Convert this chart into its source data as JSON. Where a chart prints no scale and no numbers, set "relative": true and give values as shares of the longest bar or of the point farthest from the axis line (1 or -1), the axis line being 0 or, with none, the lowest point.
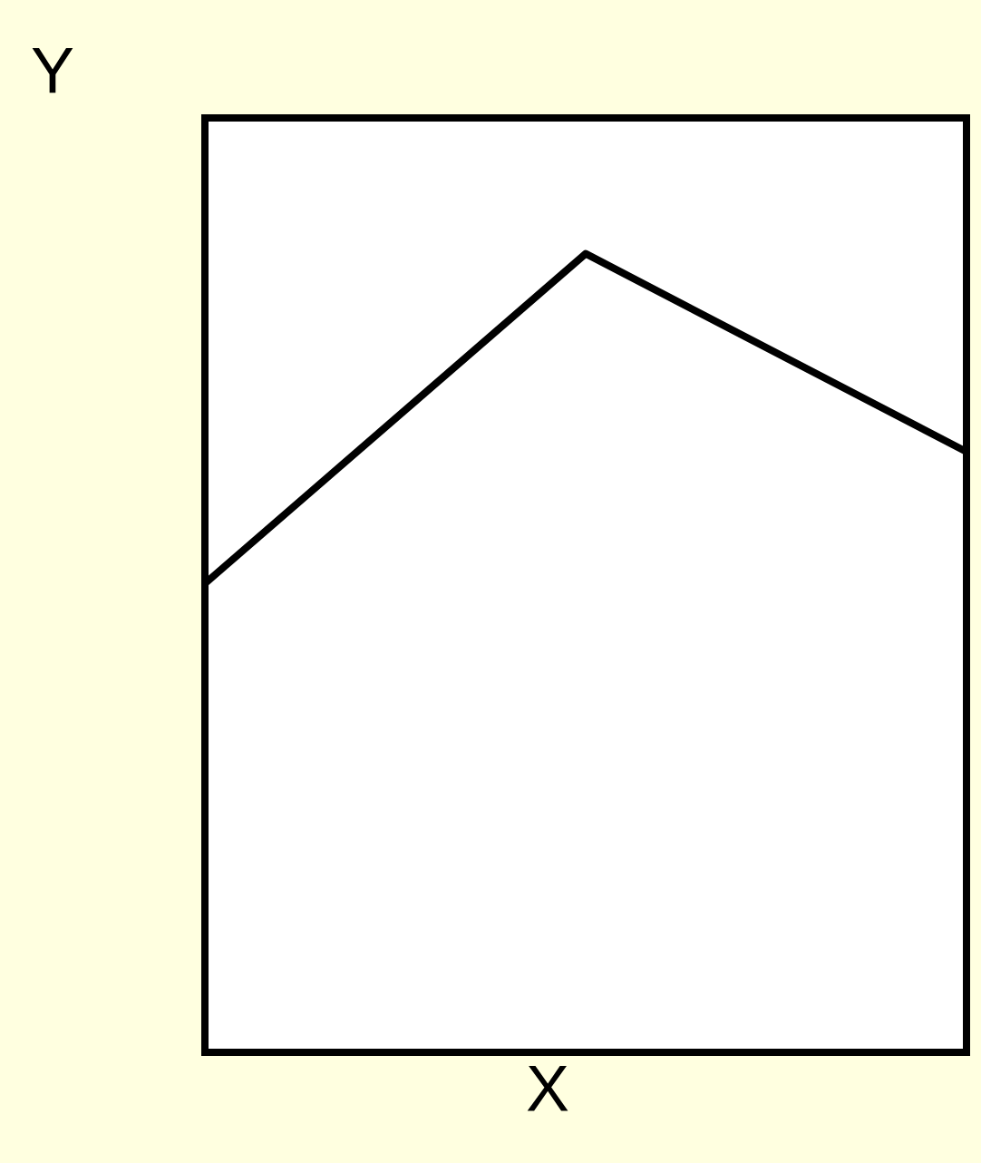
{
  "chart_data": {
    "type": "line",
    "xlabel": "X",
    "ylabel": "Y",
    "relative": true,
    "categories": [
      null,
      null,
      null
    ],
    "series": [
      {
        "color": "#000000",
        "values": [
          0.587,
          1,
          0.752
        ]
      }
    ]
  }
}
